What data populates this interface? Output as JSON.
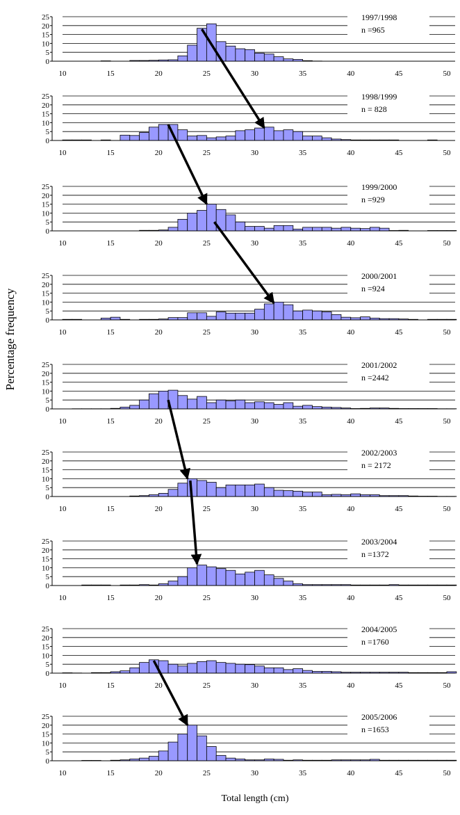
{
  "chart_data": {
    "type": "bar",
    "ylabel": "Percentage frequency",
    "xlabel": "Total length (cm)",
    "xlim": [
      10,
      50
    ],
    "ylim": [
      0,
      25
    ],
    "x_ticks": [
      10,
      15,
      20,
      25,
      30,
      35,
      40,
      45,
      50
    ],
    "y_ticks": [
      0,
      5,
      10,
      15,
      20,
      25
    ],
    "bar_color": "#9999ff",
    "panels": [
      {
        "season": "1997/1998",
        "n_label": "n =965",
        "start": 10,
        "values": [
          0,
          0,
          0,
          0,
          0.2,
          0,
          0,
          0.4,
          0.4,
          0.5,
          0.7,
          0.8,
          3,
          9,
          18.5,
          21,
          11,
          8.5,
          7,
          6.5,
          4.5,
          4,
          2.5,
          1.3,
          1,
          0.3,
          0.1,
          0,
          0,
          0,
          0,
          0,
          0,
          0,
          0,
          0,
          0,
          0,
          0,
          0,
          0
        ]
      },
      {
        "season": "1998/1999",
        "n_label": "n = 828",
        "start": 10,
        "values": [
          0.3,
          0.3,
          0.3,
          0,
          0.3,
          0,
          3,
          2.8,
          4.5,
          7.5,
          9,
          9,
          6,
          2.5,
          2.8,
          1.5,
          2,
          2.5,
          5.5,
          6,
          7,
          7.5,
          5.5,
          6,
          5,
          2.5,
          2.5,
          1.5,
          0.8,
          0.5,
          0.3,
          0.3,
          0.3,
          0.3,
          0.3,
          0,
          0,
          0,
          0.3,
          0,
          0
        ]
      },
      {
        "season": "1999/2000",
        "n_label": "n =929",
        "start": 10,
        "values": [
          0,
          0,
          0,
          0,
          0,
          0,
          0,
          0,
          0.3,
          0.3,
          0.5,
          2,
          6.5,
          10,
          11.5,
          15,
          12,
          9,
          5,
          2.5,
          2.5,
          1.5,
          3,
          3,
          1,
          2,
          2,
          2,
          1.5,
          2,
          1.5,
          1.3,
          2,
          1.5,
          0.2,
          0.3,
          0,
          0,
          0.2,
          0.2,
          0.2
        ]
      },
      {
        "season": "2000/2001",
        "n_label": "n =924",
        "start": 10,
        "values": [
          0.3,
          0.3,
          0,
          0,
          1,
          1.5,
          0.3,
          0,
          0.3,
          0.3,
          0.5,
          1.3,
          1.3,
          4,
          4,
          2,
          4.5,
          3.8,
          3.8,
          3.8,
          6,
          9,
          10,
          8.5,
          5,
          5.5,
          5,
          4.5,
          3,
          1.5,
          1.2,
          1.7,
          1,
          0.7,
          0.7,
          0.5,
          0.3,
          0,
          0.3,
          0.3,
          0.3
        ]
      },
      {
        "season": "2001/2002",
        "n_label": "n =2442",
        "start": 10,
        "values": [
          0,
          0.1,
          0.1,
          0.1,
          0.1,
          0.3,
          1,
          2,
          5,
          8.5,
          10,
          10.5,
          7.5,
          5.5,
          7,
          3.5,
          5,
          4.5,
          5,
          3.5,
          4,
          3.5,
          2.5,
          3.5,
          1.5,
          2,
          1.3,
          1,
          0.8,
          0.5,
          0.2,
          0.3,
          0.5,
          0.5,
          0.3,
          0.2,
          0.2,
          0.2,
          0.2,
          0.1,
          0.1
        ]
      },
      {
        "season": "2002/2003",
        "n_label": "n = 2172",
        "start": 10,
        "values": [
          0,
          0,
          0,
          0,
          0,
          0,
          0,
          0.3,
          0.5,
          1,
          1.8,
          4,
          7.5,
          10,
          9,
          8,
          5,
          6.5,
          6.5,
          6.5,
          7,
          5,
          3.5,
          3.3,
          3,
          2.5,
          2.5,
          1,
          1.2,
          1,
          1.5,
          1,
          1,
          0.5,
          0.5,
          0.5,
          0.3,
          0.2,
          0.2,
          0.1,
          0.1
        ]
      },
      {
        "season": "2003/2004",
        "n_label": "n =1372",
        "start": 10,
        "values": [
          0,
          0,
          0.3,
          0.3,
          0.3,
          0,
          0.3,
          0.3,
          0.5,
          0.3,
          1,
          2.5,
          5,
          10,
          11.5,
          10.5,
          9.5,
          8.5,
          6.5,
          7.5,
          8.5,
          6,
          4,
          2.5,
          1,
          0.5,
          0.5,
          0.5,
          0.5,
          0.5,
          0.3,
          0.3,
          0.3,
          0.3,
          0.5,
          0.3,
          0.3,
          0.3,
          0.3,
          0.3,
          0.3
        ]
      },
      {
        "season": "2004/2005",
        "n_label": "n =1760",
        "start": 10,
        "values": [
          0.2,
          0.1,
          0,
          0.3,
          0.3,
          0.8,
          1.3,
          3,
          6,
          7.5,
          7,
          5,
          4,
          5.5,
          6.5,
          7,
          6,
          5.5,
          5,
          4.8,
          4,
          3,
          3,
          2,
          2.5,
          1.5,
          1,
          1,
          0.8,
          0.5,
          0.5,
          0.5,
          0.5,
          0.5,
          0.5,
          0.5,
          0.3,
          0.3,
          0.3,
          0.3,
          0.8
        ]
      },
      {
        "season": "2005/2006",
        "n_label": "n =1653",
        "start": 10,
        "values": [
          0,
          0,
          0.2,
          0.2,
          0,
          0.3,
          0.5,
          1,
          1.5,
          2.5,
          5.5,
          10.5,
          15,
          20,
          14,
          8,
          3,
          1.5,
          1,
          0.5,
          0.5,
          1,
          0.8,
          0.3,
          0.5,
          0.3,
          0.3,
          0.3,
          0.5,
          0.5,
          0.5,
          0.5,
          0.8,
          0.3,
          0.3,
          0.3,
          0.3,
          0.3,
          0.3,
          0.3,
          0.3
        ]
      }
    ],
    "arrows": [
      {
        "from": {
          "panel": 0,
          "x": 24.5,
          "y": 18
        },
        "to": {
          "panel": 1,
          "x": 31,
          "y": 7
        }
      },
      {
        "from": {
          "panel": 1,
          "x": 21,
          "y": 9
        },
        "to": {
          "panel": 2,
          "x": 25,
          "y": 15
        }
      },
      {
        "from": {
          "panel": 2,
          "x": 25.8,
          "y": 5
        },
        "to": {
          "panel": 3,
          "x": 32,
          "y": 9.5
        }
      },
      {
        "from": {
          "panel": 4,
          "x": 21,
          "y": 5
        },
        "to": {
          "panel": 5,
          "x": 23,
          "y": 10
        }
      },
      {
        "from": {
          "panel": 5,
          "x": 23.3,
          "y": 9
        },
        "to": {
          "panel": 6,
          "x": 24,
          "y": 12
        }
      },
      {
        "from": {
          "panel": 7,
          "x": 19.5,
          "y": 7
        },
        "to": {
          "panel": 8,
          "x": 23,
          "y": 20
        }
      }
    ]
  }
}
